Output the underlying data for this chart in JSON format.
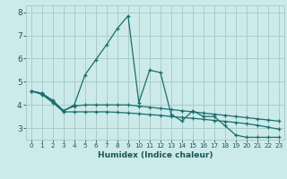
{
  "xlabel": "Humidex (Indice chaleur)",
  "background_color": "#cceaea",
  "grid_color": "#aacccc",
  "line_color": "#1a6e6e",
  "xlim": [
    -0.5,
    23.5
  ],
  "ylim": [
    2.5,
    8.3
  ],
  "yticks": [
    3,
    4,
    5,
    6,
    7,
    8
  ],
  "xticks": [
    0,
    1,
    2,
    3,
    4,
    5,
    6,
    7,
    8,
    9,
    10,
    11,
    12,
    13,
    14,
    15,
    16,
    17,
    18,
    19,
    20,
    21,
    22,
    23
  ],
  "series1_x": [
    0,
    1,
    2,
    3,
    4,
    5,
    6,
    7,
    8,
    9,
    10,
    11,
    12,
    13,
    14,
    15,
    16,
    17,
    18,
    19,
    20,
    21,
    22,
    23
  ],
  "series1_y": [
    4.6,
    4.5,
    4.2,
    3.75,
    4.0,
    5.3,
    5.95,
    6.6,
    7.3,
    7.85,
    4.1,
    5.5,
    5.4,
    3.6,
    3.3,
    3.75,
    3.5,
    3.5,
    3.1,
    2.7,
    2.6,
    2.6,
    2.6,
    2.6
  ],
  "series2_x": [
    0,
    1,
    2,
    3,
    4,
    5,
    6,
    7,
    8,
    9,
    10,
    11,
    12,
    13,
    14,
    15,
    16,
    17,
    18,
    19,
    20,
    21,
    22,
    23
  ],
  "series2_y": [
    4.6,
    4.5,
    4.15,
    3.75,
    3.95,
    4.0,
    4.0,
    4.0,
    4.0,
    4.0,
    3.95,
    3.9,
    3.85,
    3.8,
    3.75,
    3.7,
    3.65,
    3.6,
    3.55,
    3.5,
    3.45,
    3.4,
    3.35,
    3.3
  ],
  "series3_x": [
    0,
    1,
    2,
    3,
    4,
    5,
    6,
    7,
    8,
    9,
    10,
    11,
    12,
    13,
    14,
    15,
    16,
    17,
    18,
    19,
    20,
    21,
    22,
    23
  ],
  "series3_y": [
    4.6,
    4.45,
    4.1,
    3.7,
    3.7,
    3.7,
    3.7,
    3.7,
    3.68,
    3.65,
    3.62,
    3.58,
    3.55,
    3.5,
    3.46,
    3.42,
    3.38,
    3.33,
    3.29,
    3.24,
    3.19,
    3.12,
    3.04,
    2.95
  ],
  "font_color": "#1a5555"
}
